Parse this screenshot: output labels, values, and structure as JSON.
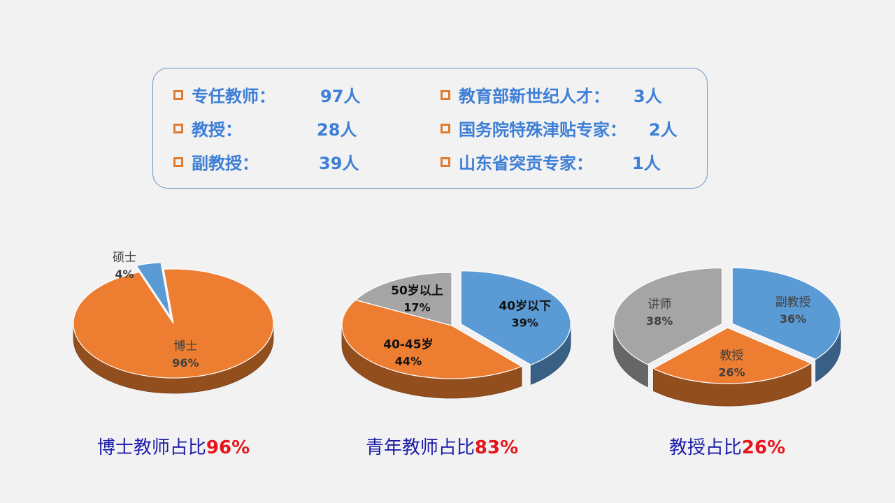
{
  "stats": {
    "left": [
      {
        "label": "专任教师：",
        "value": "97人"
      },
      {
        "label": " 教授：",
        "value": "28人"
      },
      {
        "label": " 副教授：",
        "value": "39人"
      }
    ],
    "right": [
      {
        "label": "教育部新世纪人才：",
        "value": "3人"
      },
      {
        "label": "国务院特殊津贴专家：",
        "value": "2人"
      },
      {
        "label": "山东省突贡专家：",
        "value": "1人"
      }
    ]
  },
  "captions": [
    {
      "text": "博士教师占比",
      "pct": "96%"
    },
    {
      "text": "青年教师占比",
      "pct": "83%"
    },
    {
      "text": "教授占比",
      "pct": "26%"
    }
  ],
  "colors": {
    "orange": "#ed7d31",
    "blue": "#5b9bd5",
    "gray": "#a5a5a5",
    "accent_text": "#e8141c",
    "stat_text": "#3d7fd6"
  },
  "chart_data": [
    {
      "type": "pie",
      "slices": [
        {
          "label": "硕士",
          "value": 4,
          "pct_label": "4%",
          "color": "#5b9bd5",
          "exploded": true
        },
        {
          "label": "博士",
          "value": 96,
          "pct_label": "96%",
          "color": "#ed7d31",
          "exploded": false
        }
      ]
    },
    {
      "type": "pie",
      "slices": [
        {
          "label": "40岁以下",
          "value": 39,
          "pct_label": "39%",
          "color": "#5b9bd5",
          "exploded": true
        },
        {
          "label": "40-45岁",
          "value": 44,
          "pct_label": "44%",
          "color": "#ed7d31",
          "exploded": false
        },
        {
          "label": "50岁以上",
          "value": 17,
          "pct_label": "17%",
          "color": "#a5a5a5",
          "exploded": false
        }
      ]
    },
    {
      "type": "pie",
      "slices": [
        {
          "label": "副教授",
          "value": 36,
          "pct_label": "36%",
          "color": "#5b9bd5",
          "exploded": true
        },
        {
          "label": "教授",
          "value": 26,
          "pct_label": "26%",
          "color": "#ed7d31",
          "exploded": true
        },
        {
          "label": "讲师",
          "value": 38,
          "pct_label": "38%",
          "color": "#a5a5a5",
          "exploded": true
        }
      ]
    }
  ]
}
